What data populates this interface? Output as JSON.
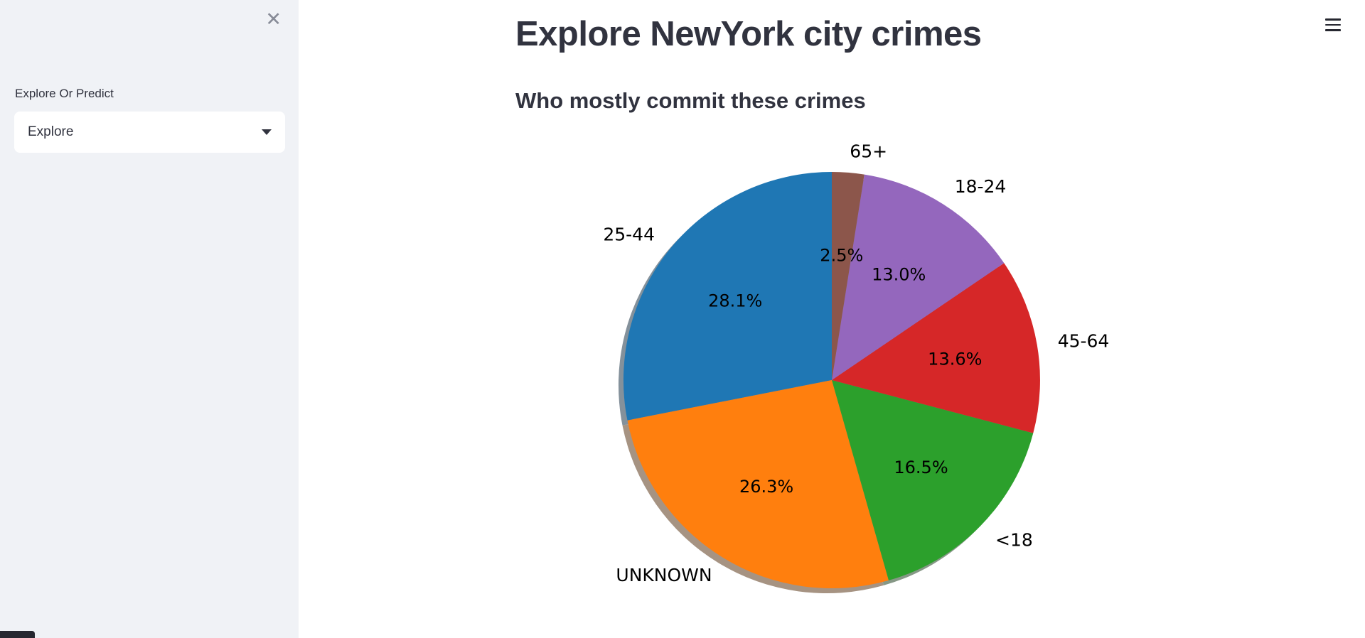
{
  "sidebar": {
    "close_icon": "✕",
    "select_label": "Explore Or Predict",
    "select_value": "Explore"
  },
  "header": {
    "title": "Explore NewYork city crimes",
    "menu_icon": "hamburger-menu"
  },
  "main": {
    "subtitle": "Who mostly commit these crimes"
  },
  "chart_data": {
    "type": "pie",
    "title": "Who mostly commit these crimes",
    "labels": [
      "25-44",
      "UNKNOWN",
      "<18",
      "45-64",
      "18-24",
      "65+"
    ],
    "values": [
      28.1,
      26.3,
      16.5,
      13.6,
      13.0,
      2.5
    ],
    "percent_labels": [
      "28.1%",
      "26.3%",
      "16.5%",
      "13.6%",
      "13.0%",
      "2.5%"
    ],
    "colors": [
      "#1f77b4",
      "#ff7f0e",
      "#2ca02c",
      "#d62728",
      "#9467bd",
      "#8c564b"
    ],
    "start_angle": 90,
    "direction": "counterclockwise",
    "shadow": true,
    "label_distance": 1.1,
    "pct_distance": 0.6,
    "legend_position": "none"
  },
  "colors": {
    "sidebar_bg": "#f0f2f6",
    "text": "#31333f",
    "widget_bg": "#ffffff"
  }
}
